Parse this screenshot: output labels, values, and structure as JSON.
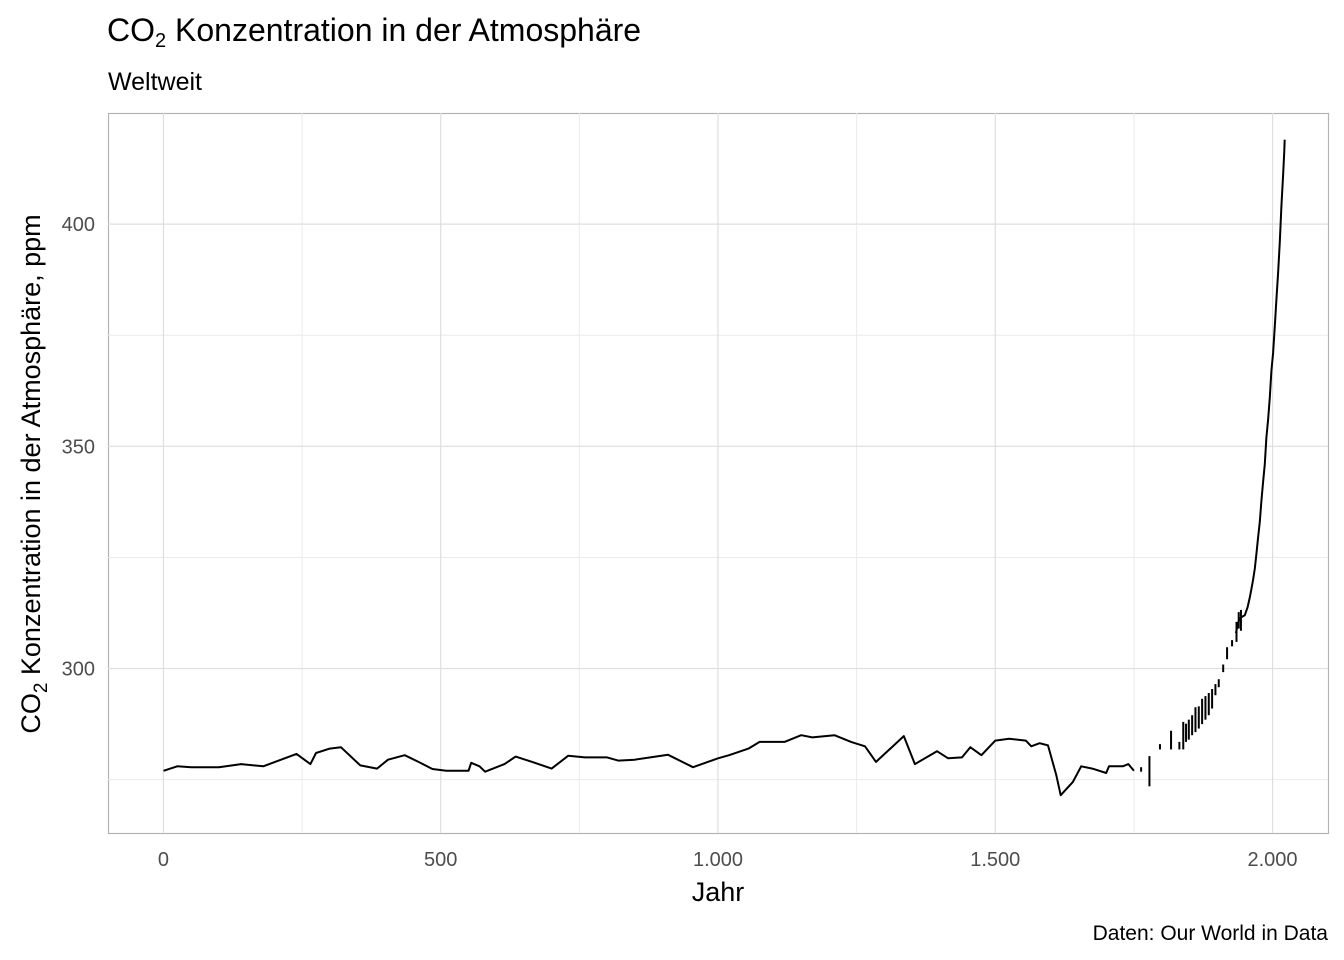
{
  "title": {
    "main": "CO",
    "sub": "2",
    "rest": " Konzentration in der Atmosphäre"
  },
  "subtitle": "Weltweit",
  "caption": "Daten: Our World in Data",
  "chart_data": {
    "type": "line",
    "xlabel": "Jahr",
    "ylabel": {
      "main": "CO",
      "sub": "2",
      "rest": " Konzentration in der Atmosphäre, ppm"
    },
    "xlim": [
      -100,
      2100
    ],
    "ylim": [
      263,
      425
    ],
    "x_ticks": [
      {
        "value": 0,
        "label": "0"
      },
      {
        "value": 500,
        "label": "500"
      },
      {
        "value": 1000,
        "label": "1.000"
      },
      {
        "value": 1500,
        "label": "1.500"
      },
      {
        "value": 2000,
        "label": "2.000"
      }
    ],
    "y_ticks": [
      {
        "value": 300,
        "label": "300"
      },
      {
        "value": 350,
        "label": "350"
      },
      {
        "value": 400,
        "label": "400"
      }
    ],
    "grid": true,
    "line_color": "#000000",
    "series": [
      {
        "segments": [
          [
            [
              0,
              277
            ],
            [
              25,
              278
            ],
            [
              50,
              277.8
            ],
            [
              100,
              277.8
            ],
            [
              140,
              278.5
            ],
            [
              180,
              278
            ],
            [
              240,
              280.8
            ],
            [
              265,
              278.5
            ],
            [
              275,
              281
            ],
            [
              300,
              282
            ],
            [
              320,
              282.3
            ],
            [
              355,
              278.2
            ],
            [
              385,
              277.5
            ],
            [
              405,
              279.5
            ],
            [
              435,
              280.5
            ],
            [
              460,
              279
            ],
            [
              485,
              277.4
            ],
            [
              510,
              277
            ],
            [
              550,
              277
            ],
            [
              555,
              278.8
            ],
            [
              570,
              278
            ],
            [
              580,
              276.8
            ],
            [
              615,
              278.5
            ],
            [
              635,
              280.2
            ],
            [
              665,
              279
            ],
            [
              700,
              277.5
            ],
            [
              730,
              280.4
            ],
            [
              760,
              280
            ],
            [
              800,
              280
            ],
            [
              820,
              279.3
            ],
            [
              850,
              279.5
            ],
            [
              910,
              280.6
            ],
            [
              955,
              277.8
            ],
            [
              1000,
              279.8
            ],
            [
              1020,
              280.5
            ],
            [
              1055,
              282
            ],
            [
              1075,
              283.5
            ],
            [
              1120,
              283.5
            ],
            [
              1150,
              285
            ],
            [
              1170,
              284.5
            ],
            [
              1210,
              285
            ],
            [
              1240,
              283.5
            ],
            [
              1265,
              282.5
            ],
            [
              1285,
              279
            ],
            [
              1335,
              284.8
            ],
            [
              1355,
              278.5
            ],
            [
              1395,
              281.4
            ],
            [
              1415,
              279.8
            ],
            [
              1440,
              280
            ],
            [
              1455,
              282.3
            ],
            [
              1475,
              280.5
            ],
            [
              1500,
              283.8
            ],
            [
              1525,
              284.2
            ],
            [
              1555,
              283.8
            ],
            [
              1565,
              282.5
            ],
            [
              1580,
              283.2
            ],
            [
              1595,
              282.7
            ],
            [
              1610,
              276
            ],
            [
              1618,
              271.5
            ],
            [
              1640,
              274.5
            ],
            [
              1655,
              278
            ],
            [
              1675,
              277.5
            ],
            [
              1700,
              276.5
            ],
            [
              1705,
              278
            ],
            [
              1730,
              278
            ],
            [
              1740,
              278.5
            ],
            [
              1750,
              277
            ]
          ]
        ],
        "bars": [
          [
            1763,
            277.8,
            276.8
          ],
          [
            1778,
            280.3,
            273.5
          ],
          [
            1797,
            283,
            281.8
          ],
          [
            1817,
            286,
            281.8
          ],
          [
            1832,
            283.5,
            281.8
          ],
          [
            1839,
            288,
            281.8
          ],
          [
            1844,
            287.6,
            283.5
          ],
          [
            1849,
            288.5,
            284
          ],
          [
            1855,
            289.5,
            285
          ],
          [
            1861,
            291.3,
            285.7
          ],
          [
            1867,
            291.5,
            286.5
          ],
          [
            1873,
            293.2,
            287.5
          ],
          [
            1879,
            293.8,
            288.5
          ],
          [
            1885,
            294.5,
            289.5
          ],
          [
            1891,
            295.4,
            291
          ],
          [
            1897,
            296.5,
            294
          ],
          [
            1903,
            297.6,
            295.8
          ],
          [
            1911,
            300.9,
            299.2
          ],
          [
            1918,
            304.8,
            302.1
          ],
          [
            1927,
            306.4,
            305
          ]
        ],
        "tail": [
          [
            1934,
            308
          ],
          [
            1940,
            311.2
          ],
          [
            1947,
            311.8
          ],
          [
            1950,
            312
          ],
          [
            1955,
            313.8
          ],
          [
            1959,
            316
          ],
          [
            1962,
            318
          ],
          [
            1965,
            320
          ],
          [
            1968,
            322.5
          ],
          [
            1971,
            326
          ],
          [
            1974,
            329.5
          ],
          [
            1977,
            333
          ],
          [
            1980,
            338
          ],
          [
            1983,
            342
          ],
          [
            1986,
            346
          ],
          [
            1989,
            352
          ],
          [
            1992,
            356
          ],
          [
            1995,
            361
          ],
          [
            1998,
            367
          ],
          [
            2001,
            371
          ],
          [
            2004,
            377
          ],
          [
            2007,
            383
          ],
          [
            2010,
            389
          ],
          [
            2013,
            396
          ],
          [
            2016,
            404
          ],
          [
            2019,
            411
          ],
          [
            2021,
            416
          ],
          [
            2022,
            419
          ]
        ],
        "tail_jitter": [
          [
            1935,
            306,
            310.5
          ],
          [
            1939,
            309,
            312.7
          ],
          [
            1943,
            308.5,
            313.2
          ]
        ]
      }
    ]
  }
}
